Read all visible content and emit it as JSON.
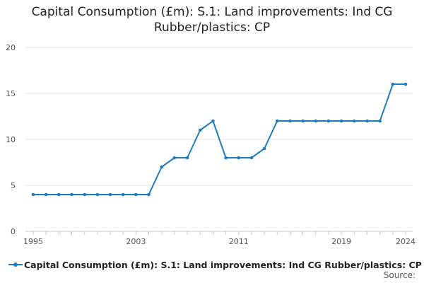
{
  "chart_data": {
    "type": "line",
    "title": "Capital Consumption (£m): S.1: Land improvements: Ind CG",
    "subtitle": "Rubber/plastics: CP",
    "xlabel": "",
    "ylabel": "",
    "x": [
      1995,
      1996,
      1997,
      1998,
      1999,
      2000,
      2001,
      2002,
      2003,
      2004,
      2005,
      2006,
      2007,
      2008,
      2009,
      2010,
      2011,
      2012,
      2013,
      2014,
      2015,
      2016,
      2017,
      2018,
      2019,
      2020,
      2021,
      2022,
      2023,
      2024
    ],
    "x_tick_labels": [
      "1995",
      "2003",
      "2011",
      "2019",
      "2024"
    ],
    "xlim": [
      1995,
      2024
    ],
    "ylim": [
      0,
      20
    ],
    "y_ticks": [
      0,
      5,
      10,
      15,
      20
    ],
    "grid": true,
    "series": [
      {
        "name": "Capital Consumption (£m): S.1: Land improvements: Ind CG Rubber/plastics: CP",
        "color": "#1f7cbf",
        "values": [
          4,
          4,
          4,
          4,
          4,
          4,
          4,
          4,
          4,
          4,
          7,
          8,
          8,
          11,
          12,
          8,
          8,
          8,
          9,
          12,
          12,
          12,
          12,
          12,
          12,
          12,
          12,
          12,
          16,
          16
        ]
      }
    ],
    "legend_position": "bottom-left",
    "source_label": "Source:"
  }
}
